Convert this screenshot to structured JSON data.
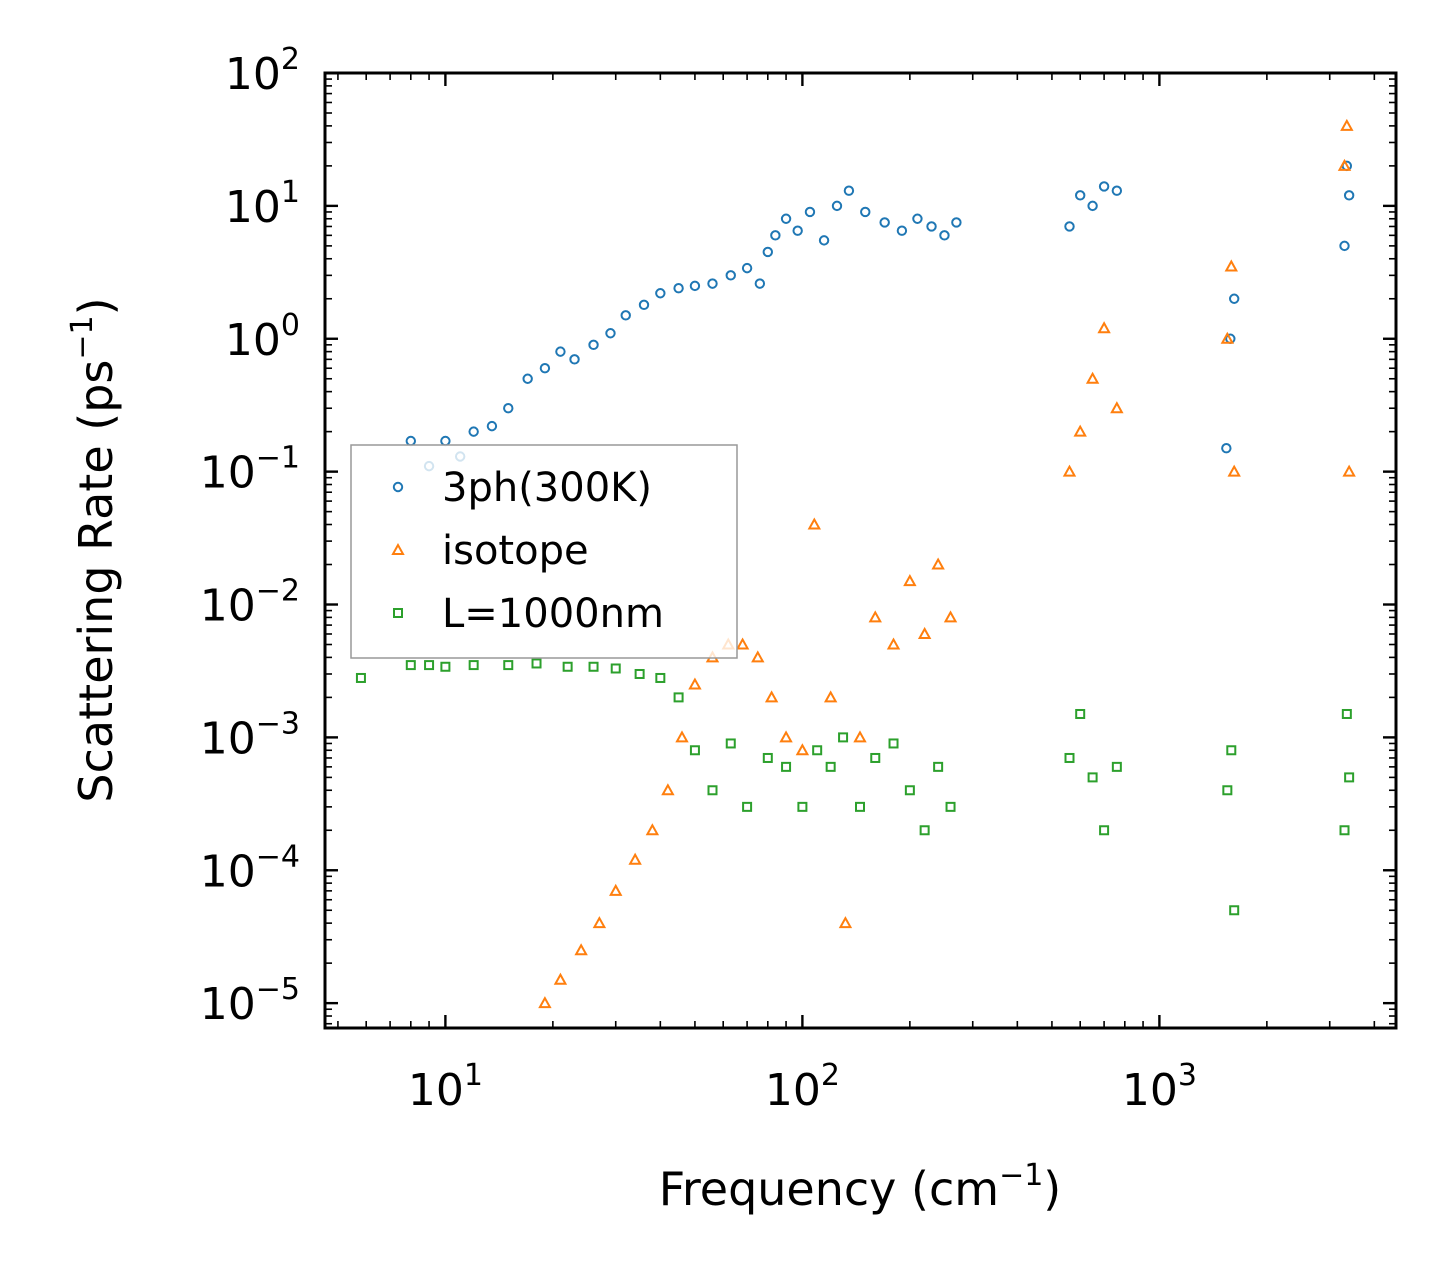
{
  "chart_data": {
    "type": "scatter",
    "title": "",
    "xlabel": "Frequency (cm",
    "xlabel_sup": "−1",
    "xlabel_end": ")",
    "ylabel": "Scattering Rate (ps",
    "ylabel_sup": "−1",
    "ylabel_end": ")",
    "xscale": "log",
    "yscale": "log",
    "xlim": [
      4.6,
      4600
    ],
    "ylim": [
      6.5e-06,
      100
    ],
    "x_ticks": [
      {
        "value": 10,
        "base": "10",
        "exp": "1"
      },
      {
        "value": 100,
        "base": "10",
        "exp": "2"
      },
      {
        "value": 1000,
        "base": "10",
        "exp": "3"
      }
    ],
    "y_ticks": [
      {
        "value": 100,
        "base": "10",
        "exp": "2"
      },
      {
        "value": 10,
        "base": "10",
        "exp": "1"
      },
      {
        "value": 1,
        "base": "10",
        "exp": "0"
      },
      {
        "value": 0.1,
        "base": "10",
        "exp": "−1"
      },
      {
        "value": 0.01,
        "base": "10",
        "exp": "−2"
      },
      {
        "value": 0.001,
        "base": "10",
        "exp": "−3"
      },
      {
        "value": 0.0001,
        "base": "10",
        "exp": "−4"
      },
      {
        "value": 1e-05,
        "base": "10",
        "exp": "−5"
      }
    ],
    "legend_position": "center-left",
    "series": [
      {
        "name": "3ph(300K)",
        "marker": "circle",
        "color": "#1f77b4",
        "x": [
          8.0,
          9.0,
          10.0,
          11.0,
          12.0,
          13.5,
          15.0,
          17.0,
          19.0,
          21.0,
          23.0,
          26.0,
          29.0,
          32.0,
          36.0,
          40.0,
          45.0,
          50.0,
          56.0,
          63.0,
          70.0,
          76.0,
          80.0,
          84.0,
          90.0,
          97.0,
          105.0,
          115.0,
          125.0,
          135.0,
          150.0,
          170.0,
          190.0,
          210.0,
          230.0,
          250.0,
          270.0,
          560.0,
          600.0,
          650.0,
          700.0,
          760.0,
          1540.0,
          1580.0,
          1620.0,
          3300.0,
          3350.0,
          3400.0
        ],
        "y": [
          0.17,
          0.11,
          0.17,
          0.13,
          0.2,
          0.22,
          0.3,
          0.5,
          0.6,
          0.8,
          0.7,
          0.9,
          1.1,
          1.5,
          1.8,
          2.2,
          2.4,
          2.5,
          2.6,
          3.0,
          3.4,
          2.6,
          4.5,
          6.0,
          8.0,
          6.5,
          9.0,
          5.5,
          10.0,
          13.0,
          9.0,
          7.5,
          6.5,
          8.0,
          7.0,
          6.0,
          7.5,
          7.0,
          12.0,
          10.0,
          14.0,
          13.0,
          0.15,
          1.0,
          2.0,
          5.0,
          20.0,
          12.0
        ]
      },
      {
        "name": "isotope",
        "marker": "triangle",
        "color": "#ff7f0e",
        "x": [
          19.0,
          21.0,
          24.0,
          27.0,
          30.0,
          34.0,
          38.0,
          42.0,
          46.0,
          50.0,
          56.0,
          62.0,
          68.0,
          75.0,
          82.0,
          90.0,
          100.0,
          108.0,
          120.0,
          132.0,
          145.0,
          160.0,
          180.0,
          200.0,
          220.0,
          240.0,
          260.0,
          560.0,
          600.0,
          650.0,
          700.0,
          760.0,
          1550.0,
          1590.0,
          1620.0,
          3300.0,
          3350.0,
          3400.0
        ],
        "y": [
          1e-05,
          1.5e-05,
          2.5e-05,
          4e-05,
          7e-05,
          0.00012,
          0.0002,
          0.0004,
          0.001,
          0.0025,
          0.004,
          0.005,
          0.005,
          0.004,
          0.002,
          0.001,
          0.0008,
          0.04,
          0.002,
          4e-05,
          0.001,
          0.008,
          0.005,
          0.015,
          0.006,
          0.02,
          0.008,
          0.1,
          0.2,
          0.5,
          1.2,
          0.3,
          1.0,
          3.5,
          0.1,
          20.0,
          40.0,
          0.1
        ]
      },
      {
        "name": "L=1000nm",
        "marker": "square",
        "color": "#2ca02c",
        "x": [
          5.8,
          8.0,
          9.0,
          10.0,
          12.0,
          15.0,
          18.0,
          22.0,
          26.0,
          30.0,
          35.0,
          40.0,
          45.0,
          50.0,
          56.0,
          63.0,
          70.0,
          80.0,
          90.0,
          100.0,
          110.0,
          120.0,
          130.0,
          145.0,
          160.0,
          180.0,
          200.0,
          220.0,
          240.0,
          260.0,
          560.0,
          600.0,
          650.0,
          700.0,
          760.0,
          1550.0,
          1590.0,
          1620.0,
          3300.0,
          3350.0,
          3400.0
        ],
        "y": [
          0.0028,
          0.0035,
          0.0035,
          0.0034,
          0.0035,
          0.0035,
          0.0036,
          0.0034,
          0.0034,
          0.0033,
          0.003,
          0.0028,
          0.002,
          0.0008,
          0.0004,
          0.0009,
          0.0003,
          0.0007,
          0.0006,
          0.0003,
          0.0008,
          0.0006,
          0.001,
          0.0003,
          0.0007,
          0.0009,
          0.0004,
          0.0002,
          0.0006,
          0.0003,
          0.0007,
          0.0015,
          0.0005,
          0.0002,
          0.0006,
          0.0004,
          0.0008,
          5e-05,
          0.0002,
          0.0015,
          0.0005
        ]
      }
    ]
  }
}
